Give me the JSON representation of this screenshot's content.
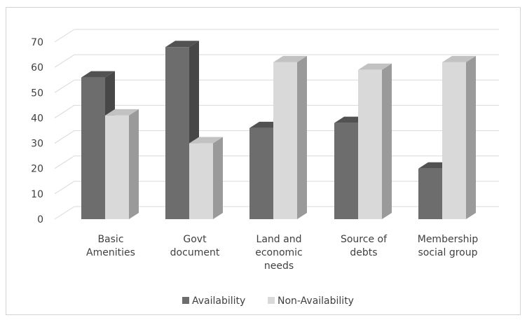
{
  "chart_data": {
    "type": "bar",
    "title": "",
    "xlabel": "",
    "ylabel": "",
    "ylim": [
      0,
      70
    ],
    "yticks": [
      0,
      10,
      20,
      30,
      40,
      50,
      60,
      70
    ],
    "grid": true,
    "legend_position": "bottom",
    "three_d": true,
    "categories": [
      [
        "Basic",
        "Amenities"
      ],
      [
        "Govt",
        "document"
      ],
      [
        "Land and",
        "economic",
        "needs"
      ],
      [
        "Source of",
        "debts"
      ],
      [
        "Membership",
        "social group"
      ]
    ],
    "series": [
      {
        "name": "Availability",
        "values": [
          56,
          68,
          36,
          38,
          20
        ],
        "color": "#6d6d6d",
        "side_color": "#474747",
        "top_color": "#525252"
      },
      {
        "name": "Non-Availability",
        "values": [
          41,
          30,
          62,
          59,
          62
        ],
        "color": "#d9d9d9",
        "side_color": "#9a9a9a",
        "top_color": "#c2c2c2"
      }
    ]
  }
}
